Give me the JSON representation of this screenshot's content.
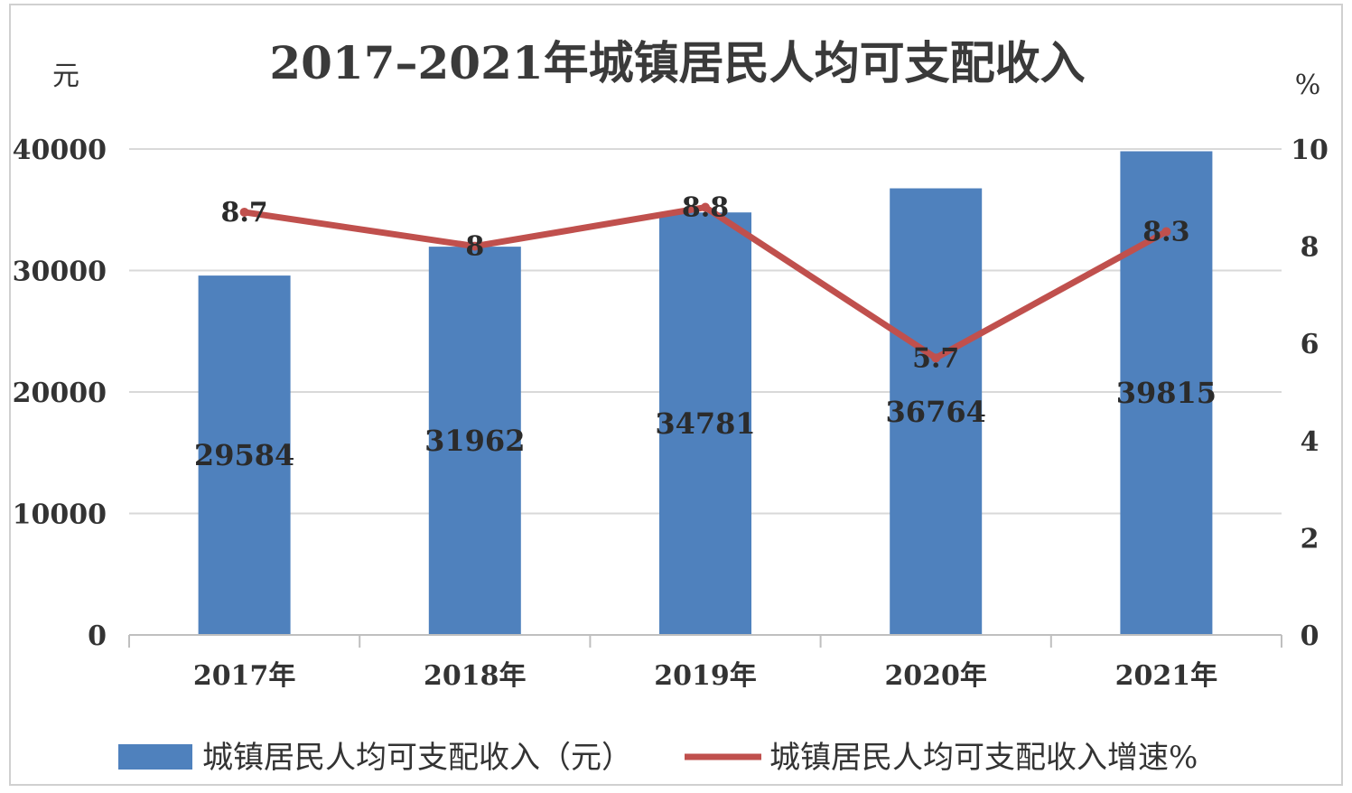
{
  "chart_data": {
    "type": "bar",
    "title": "2017–2021年城镇居民人均可支配收入",
    "categories": [
      "2017年",
      "2018年",
      "2019年",
      "2020年",
      "2021年"
    ],
    "y_left": {
      "unit": "元",
      "ylim": [
        0,
        40000
      ],
      "ticks": [
        "0",
        "10000",
        "20000",
        "30000",
        "40000"
      ]
    },
    "y_right": {
      "unit": "%",
      "ylim": [
        0,
        10
      ],
      "ticks": [
        "0",
        "2",
        "4",
        "6",
        "8",
        "10"
      ]
    },
    "series": [
      {
        "name": "城镇居民人均可支配收入（元）",
        "type": "bar",
        "axis": "left",
        "color": "#4f81bd",
        "values": [
          29584,
          31962,
          34781,
          36764,
          39815
        ],
        "labels": [
          "29584",
          "31962",
          "34781",
          "36764",
          "39815"
        ]
      },
      {
        "name": "城镇居民人均可支配收入增速%",
        "type": "line",
        "axis": "right",
        "color": "#c0504d",
        "values": [
          8.7,
          8,
          8.8,
          5.7,
          8.3
        ],
        "labels": [
          "8.7",
          "8",
          "8.8",
          "5.7",
          "8.3"
        ]
      }
    ],
    "grid": true,
    "legend_position": "bottom"
  }
}
